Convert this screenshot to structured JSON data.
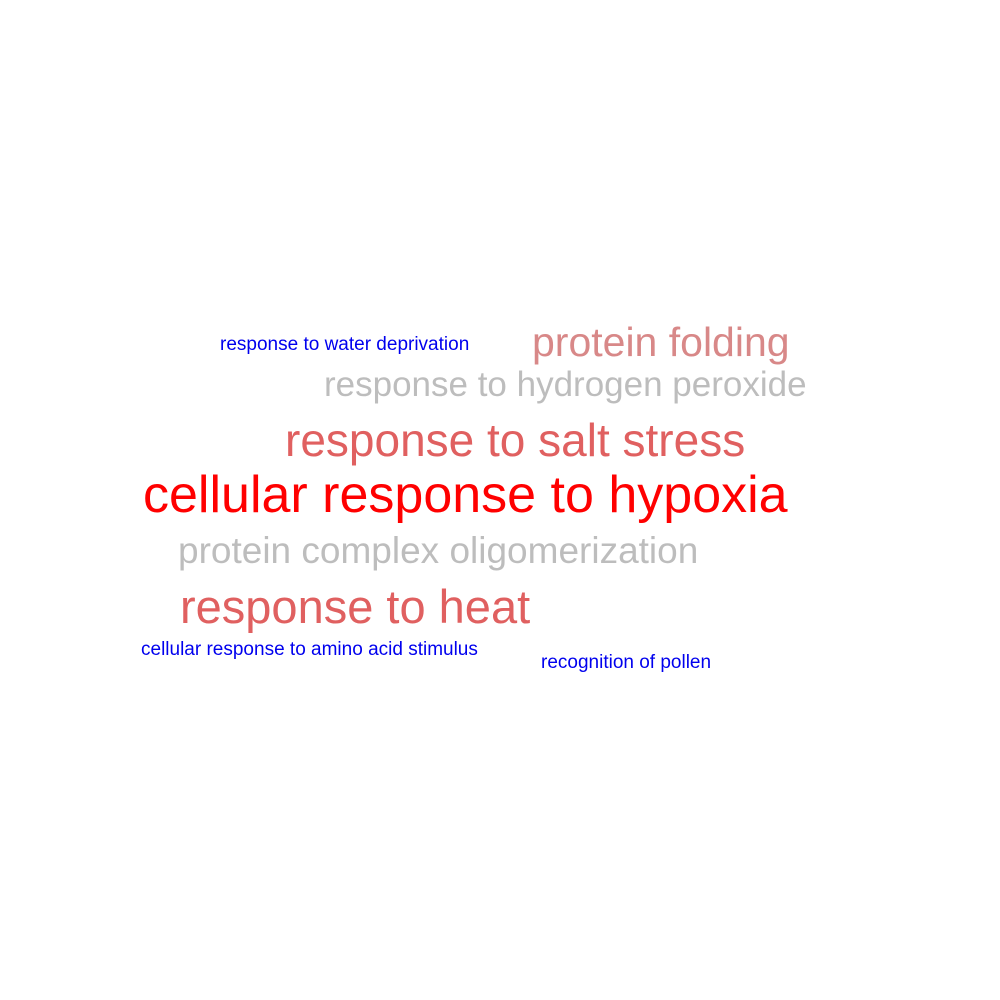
{
  "word_cloud": {
    "words": [
      {
        "text": "response to water deprivation",
        "color": "#0000ee"
      },
      {
        "text": "protein folding",
        "color": "#d88888"
      },
      {
        "text": "response to hydrogen peroxide",
        "color": "#bdbdbd"
      },
      {
        "text": "response to salt stress",
        "color": "#e06060"
      },
      {
        "text": "cellular response to hypoxia",
        "color": "#ff0000"
      },
      {
        "text": "protein complex oligomerization",
        "color": "#bdbdbd"
      },
      {
        "text": "response to heat",
        "color": "#e06060"
      },
      {
        "text": "cellular response to amino acid stimulus",
        "color": "#0000ee"
      },
      {
        "text": "recognition of pollen",
        "color": "#0000ee"
      }
    ]
  }
}
